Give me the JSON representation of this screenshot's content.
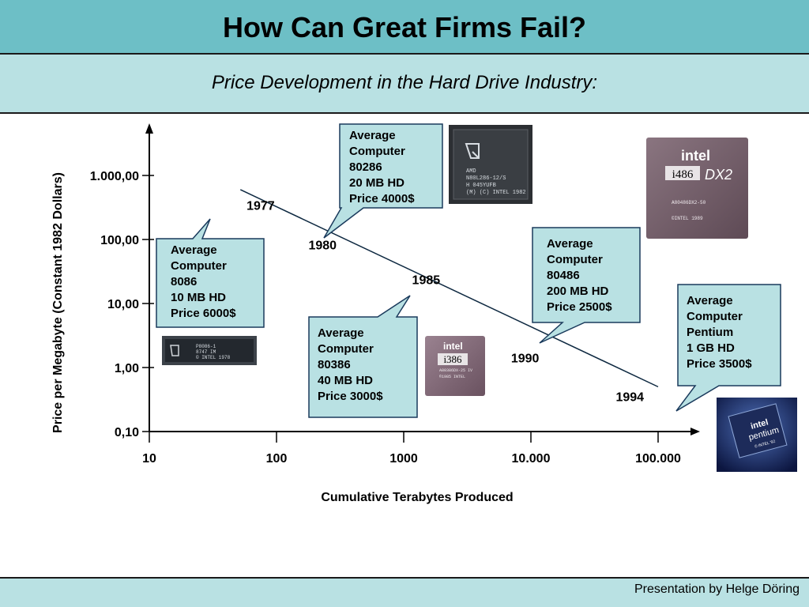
{
  "slide": {
    "title": "How Can Great Firms Fail?",
    "subtitle": "Price Development in the Hard Drive Industry:",
    "footer": "Presentation by Helge Döring"
  },
  "colors": {
    "header_bg": "#6dbfc6",
    "subheader_bg": "#b9e1e3",
    "callout_bg": "#b9e1e3",
    "callout_border": "#1a3a5c",
    "line": "#0d2840"
  },
  "chart_data": {
    "type": "line",
    "xscale": "log",
    "yscale": "log",
    "xlabel": "Cumulative Terabytes Produced",
    "ylabel": "Price per Megabyte (Constant 1982 Dollars)",
    "xticks": [
      10,
      100,
      1000,
      10000,
      100000
    ],
    "xtick_labels": [
      "10",
      "100",
      "1000",
      "10.000",
      "100.000"
    ],
    "yticks": [
      0.1,
      1,
      10,
      100,
      1000
    ],
    "ytick_labels": [
      "0,10",
      "1,00",
      "10,00",
      "100,00",
      "1.000,00"
    ],
    "series": [
      {
        "x": [
          52,
          100000
        ],
        "y": [
          600,
          0.5
        ]
      }
    ],
    "year_labels": [
      {
        "label": "1977",
        "x": 75,
        "y": 290
      },
      {
        "label": "1980",
        "x": 230,
        "y": 70
      },
      {
        "label": "1985",
        "x": 1500,
        "y": 20
      },
      {
        "label": "1990",
        "x": 9000,
        "y": 1.2
      },
      {
        "label": "1994",
        "x": 60000,
        "y": 0.3
      }
    ],
    "callouts": [
      {
        "id": "8086",
        "lines": [
          "Average",
          "Computer",
          "8086",
          "10 MB HD",
          "Price 6000$"
        ],
        "chip": "amd-8086-chip"
      },
      {
        "id": "80286",
        "lines": [
          "Average",
          "Computer",
          "80286",
          "20 MB HD",
          "Price 4000$"
        ],
        "chip": "amd-80286-chip"
      },
      {
        "id": "80386",
        "lines": [
          "Average",
          "Computer",
          "80386",
          "40 MB HD",
          "Price 3000$"
        ],
        "chip": "intel-386-chip"
      },
      {
        "id": "80486",
        "lines": [
          "Average",
          "Computer",
          "80486",
          "200 MB HD",
          "Price 2500$"
        ],
        "chip": "intel-486-dx2-chip"
      },
      {
        "id": "pentium",
        "lines": [
          "Average",
          "Computer",
          "Pentium",
          "1 GB HD",
          "Price 3500$"
        ],
        "chip": "intel-pentium-chip"
      }
    ]
  },
  "chips": {
    "8086": {
      "lines": [
        "P8086-1",
        "8747 IM",
        "© INTEL 1978"
      ]
    },
    "80286": {
      "lines": [
        "AMD",
        "N80L286-12/S",
        "H 045YUFB",
        "(M) (C) INTEL 1982"
      ]
    },
    "80386": {
      "logo": "intel",
      "model": "i386",
      "lines": [
        "A80386DX-25 IV",
        "©1985 INTEL"
      ]
    },
    "80486": {
      "logo": "intel",
      "model": "i486",
      "suffix": "DX2",
      "lines": [
        "A80486DX2-50",
        "©INTEL 1989"
      ]
    },
    "pentium": {
      "logo": "intel",
      "model": "pentium",
      "lines": [
        "© INTEL '92"
      ]
    }
  }
}
